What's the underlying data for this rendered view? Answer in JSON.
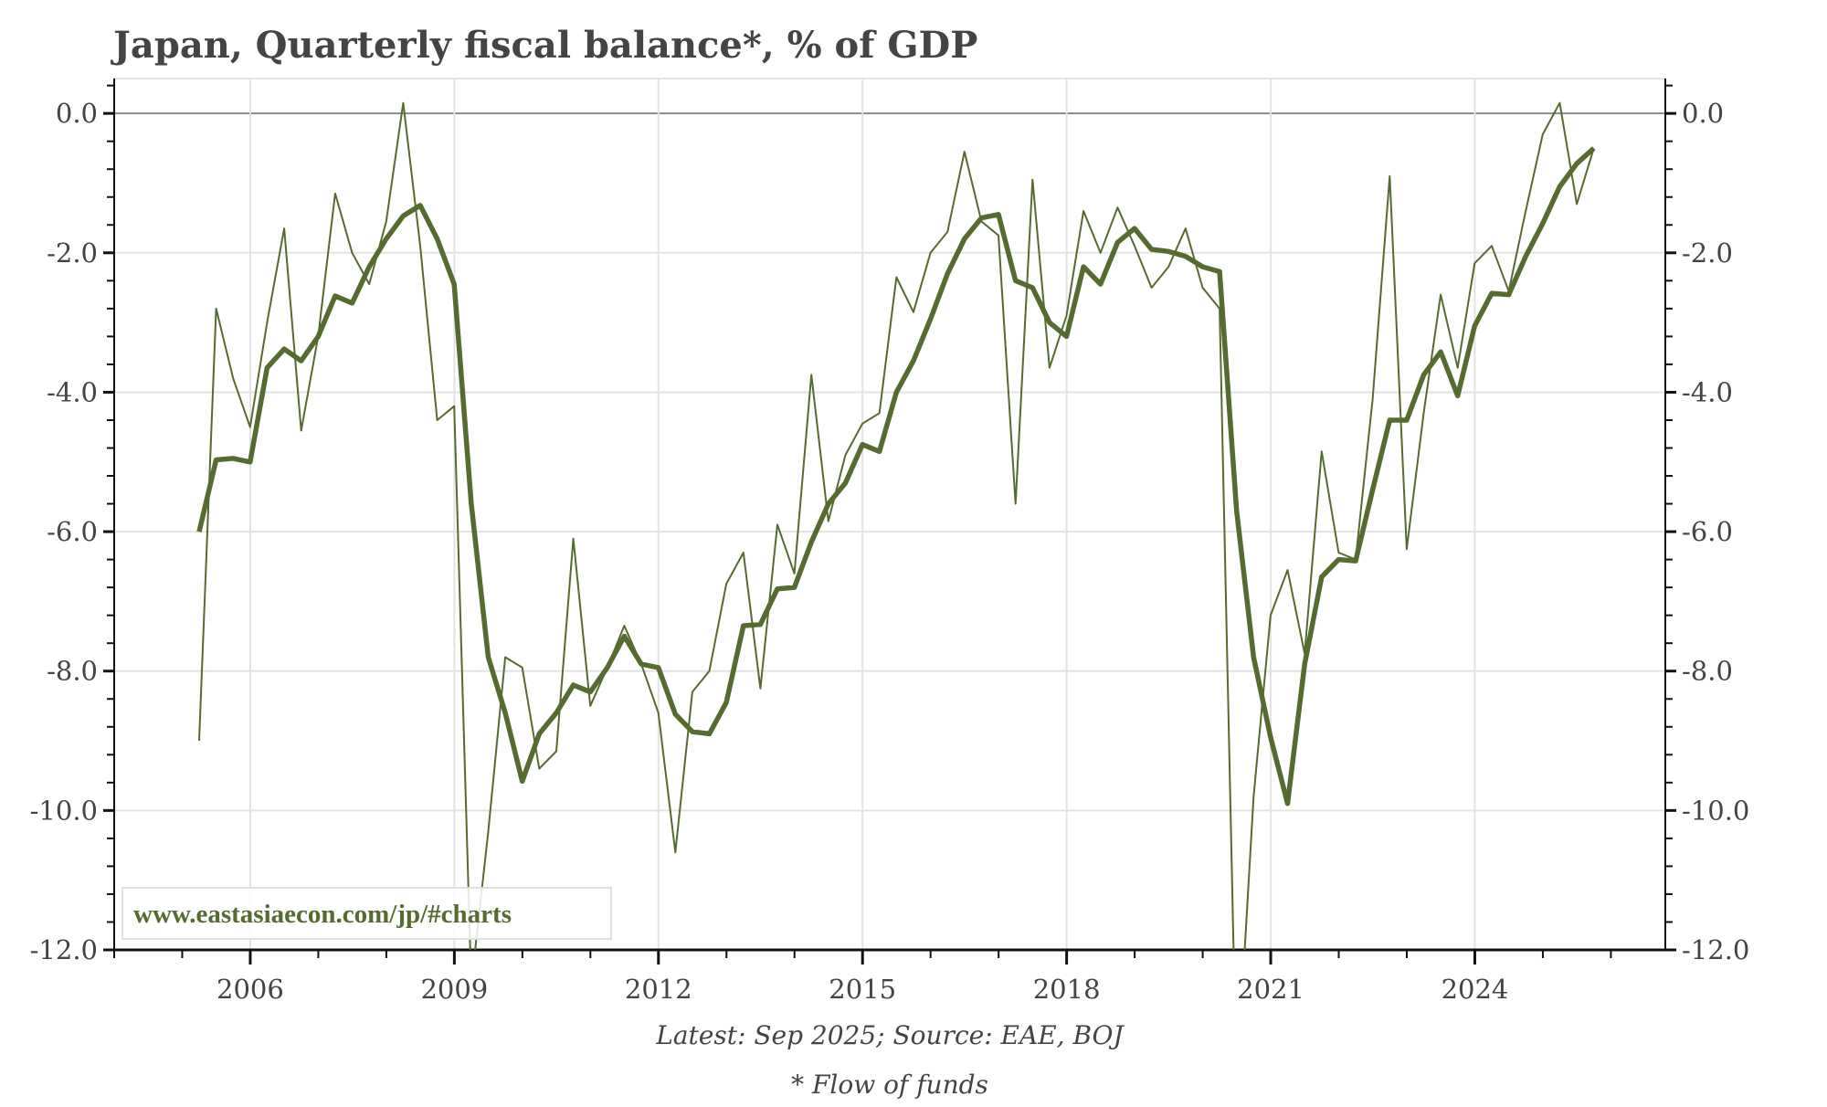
{
  "chart_data": {
    "type": "line",
    "title": "Japan, Quarterly fiscal balance*, % of GDP",
    "xlabel": "",
    "ylabel": "",
    "xlim": [
      2004.0,
      2026.8
    ],
    "ylim": [
      -12.0,
      0.5
    ],
    "x_ticks": [
      "2006",
      "2009",
      "2012",
      "2015",
      "2018",
      "2021",
      "2024"
    ],
    "y_ticks": [
      "0.0",
      "-2.0",
      "-4.0",
      "-6.0",
      "-8.0",
      "-10.0",
      "-12.0"
    ],
    "grid": true,
    "legend": "none",
    "x_start": "Mar 2005",
    "x_frequency": "quarterly",
    "series": [
      {
        "style": "thin",
        "color": "#556b2f",
        "values": [
          -9.0,
          -2.8,
          -3.8,
          -4.5,
          -3.0,
          -1.65,
          -4.55,
          -3.2,
          -1.15,
          -2.0,
          -2.45,
          -1.55,
          0.15,
          -1.9,
          -4.4,
          -4.2,
          -12.5,
          -10.3,
          -7.8,
          -7.95,
          -9.4,
          -9.15,
          -6.1,
          -8.5,
          -7.95,
          -7.35,
          -7.9,
          -8.6,
          -10.6,
          -8.3,
          -8.0,
          -6.75,
          -6.3,
          -8.25,
          -5.9,
          -6.6,
          -3.75,
          -5.85,
          -4.9,
          -4.45,
          -4.3,
          -2.35,
          -2.85,
          -2.0,
          -1.7,
          -0.55,
          -1.55,
          -1.75,
          -5.6,
          -0.95,
          -3.65,
          -2.9,
          -1.4,
          -2.0,
          -1.35,
          -1.9,
          -2.5,
          -2.2,
          -1.65,
          -2.5,
          -2.8,
          -14.0,
          -9.8,
          -7.2,
          -6.55,
          -7.75,
          -4.85,
          -6.3,
          -6.4,
          -4.1,
          -0.9,
          -6.25,
          -4.3,
          -2.6,
          -3.65,
          -2.15,
          -1.9,
          -2.55,
          -1.4,
          -0.3,
          0.15,
          -1.3,
          -0.5
        ]
      },
      {
        "style": "thick",
        "color": "#556b2f",
        "values": [
          -6.0,
          -4.97,
          -4.95,
          -5.0,
          -3.65,
          -3.38,
          -3.55,
          -3.2,
          -2.62,
          -2.72,
          -2.2,
          -1.8,
          -1.47,
          -1.32,
          -1.8,
          -2.45,
          -5.6,
          -7.8,
          -8.6,
          -9.58,
          -8.9,
          -8.6,
          -8.2,
          -8.3,
          -7.95,
          -7.5,
          -7.9,
          -7.95,
          -8.62,
          -8.87,
          -8.9,
          -8.45,
          -7.35,
          -7.33,
          -6.82,
          -6.8,
          -6.15,
          -5.6,
          -5.3,
          -4.75,
          -4.85,
          -4.0,
          -3.55,
          -2.95,
          -2.3,
          -1.8,
          -1.5,
          -1.45,
          -2.4,
          -2.5,
          -3.0,
          -3.2,
          -2.2,
          -2.45,
          -1.85,
          -1.65,
          -1.95,
          -1.98,
          -2.05,
          -2.2,
          -2.27,
          -5.7,
          -7.8,
          -8.95,
          -9.9,
          -7.9,
          -6.65,
          -6.4,
          -6.42,
          -5.4,
          -4.4,
          -4.4,
          -3.75,
          -3.42,
          -4.05,
          -3.05,
          -2.58,
          -2.6,
          -2.05,
          -1.58,
          -1.05,
          -0.72,
          -0.5
        ]
      }
    ],
    "source_note": "Latest: Sep 2025; Source: EAE, BOJ",
    "footnote": "* Flow of funds",
    "watermark": "www.eastasiaecon.com/jp/#charts"
  },
  "colors": {
    "line": "#556b2f",
    "title": "#444444",
    "grid": "#e3e3e3",
    "zero_line": "#888888"
  }
}
